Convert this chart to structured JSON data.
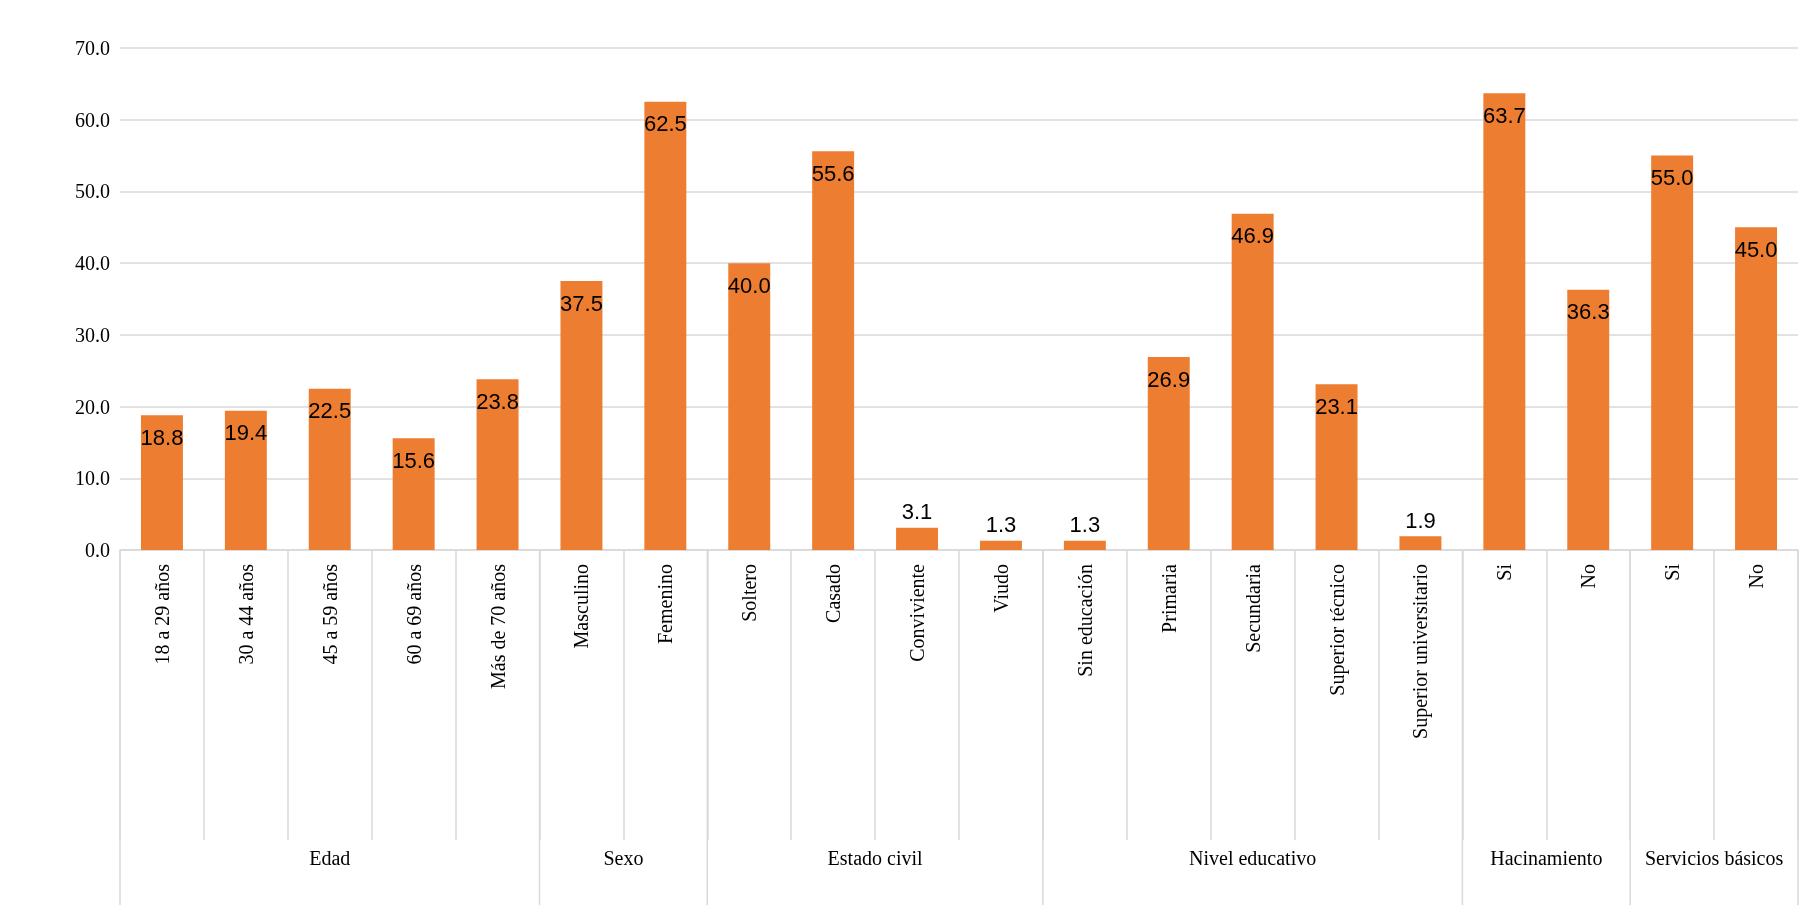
{
  "chart_data": {
    "type": "bar",
    "categories": [
      "18 a 29 años",
      "30 a 44 años",
      "45 a 59 años",
      "60 a 69 años",
      "Más de 70 años",
      "Masculino",
      "Femenino",
      "Soltero",
      "Casado",
      "Conviviente",
      "Viudo",
      "Sin educación",
      "Primaria",
      "Secundaria",
      "Superior técnico",
      "Superior universitario",
      "Si",
      "No",
      "Si",
      "No"
    ],
    "values": [
      18.8,
      19.4,
      22.5,
      15.6,
      23.8,
      37.5,
      62.5,
      40.0,
      55.6,
      3.1,
      1.3,
      1.3,
      26.9,
      46.9,
      23.1,
      1.9,
      63.7,
      36.3,
      55.0,
      45.0
    ],
    "color": "#ed7d31",
    "ylim": [
      0,
      70
    ],
    "yticks": [
      {
        "value": 0,
        "label": "0.0"
      },
      {
        "value": 10,
        "label": "10.0"
      },
      {
        "value": 20,
        "label": "20.0"
      },
      {
        "value": 30,
        "label": "30.0"
      },
      {
        "value": 40,
        "label": "40.0"
      },
      {
        "value": 50,
        "label": "50.0"
      },
      {
        "value": 60,
        "label": "60.0"
      },
      {
        "value": 70,
        "label": "70.0"
      }
    ],
    "grid": "y",
    "value_labels": [
      "18.8",
      "19.4",
      "22.5",
      "15.6",
      "23.8",
      "37.5",
      "62.5",
      "40.0",
      "55.6",
      "3.1",
      "1.3",
      "1.3",
      "26.9",
      "46.9",
      "23.1",
      "1.9",
      "63.7",
      "36.3",
      "55.0",
      "45.0"
    ],
    "annotations": [
      "Edad",
      "Sexo",
      "Estado civil",
      "Nivel educativo",
      "Hacinamiento",
      "Servicios básicos"
    ]
  }
}
